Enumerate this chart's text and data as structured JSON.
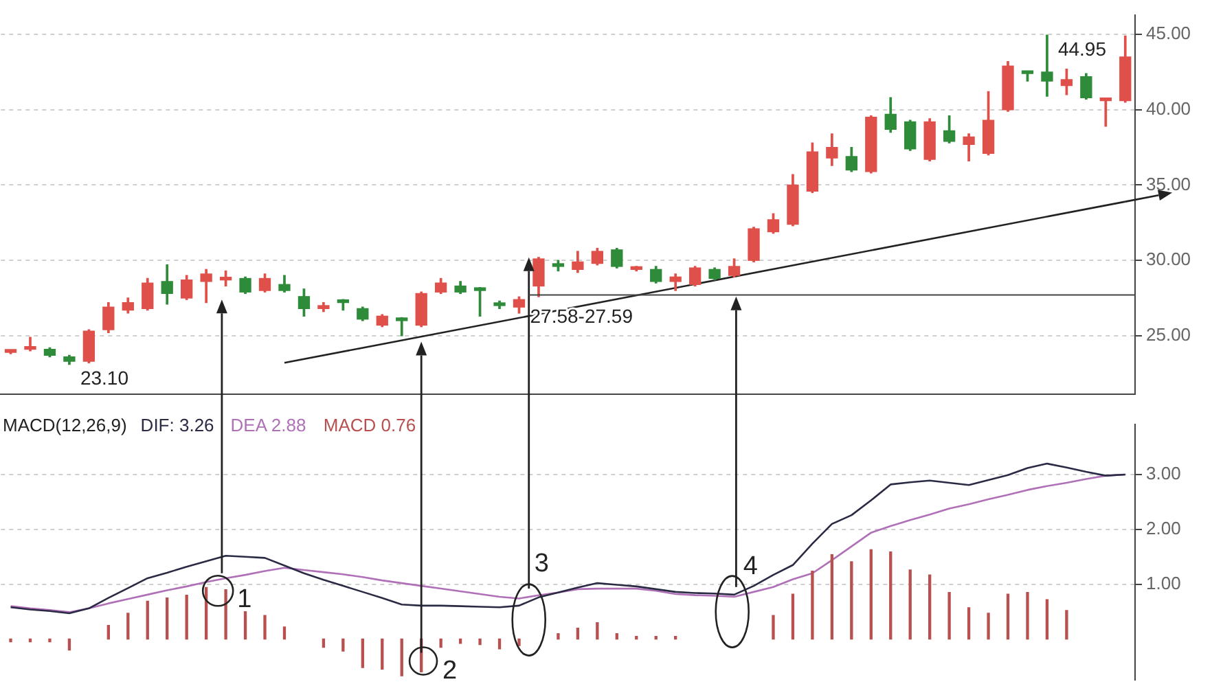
{
  "chart_data": [
    {
      "type": "candlestick",
      "categories": [
        null,
        null,
        null,
        null,
        null,
        null,
        null,
        null,
        null,
        null,
        null,
        null,
        null,
        null,
        null,
        null,
        null,
        null,
        null,
        null,
        null,
        null,
        null,
        null,
        null,
        null,
        null,
        null,
        null,
        null,
        null,
        null,
        null,
        null,
        null,
        null,
        null,
        null,
        null,
        null,
        null,
        null,
        null,
        null,
        null,
        null,
        null,
        null,
        null,
        null,
        null,
        null,
        null,
        null,
        null,
        null,
        null,
        null
      ],
      "ohlc": [
        [
          23.9,
          24.0,
          23.8,
          24.0
        ],
        [
          24.1,
          24.9,
          24.0,
          24.2
        ],
        [
          24.1,
          24.2,
          23.6,
          23.7
        ],
        [
          23.6,
          23.7,
          23.1,
          23.3
        ],
        [
          23.3,
          25.4,
          23.2,
          25.3
        ],
        [
          25.4,
          27.2,
          25.2,
          26.9
        ],
        [
          26.7,
          27.5,
          26.5,
          27.2
        ],
        [
          26.8,
          28.8,
          26.7,
          28.5
        ],
        [
          28.6,
          29.7,
          27.1,
          27.8
        ],
        [
          27.5,
          29.0,
          27.4,
          28.7
        ],
        [
          28.6,
          29.4,
          27.2,
          29.1
        ],
        [
          28.7,
          29.3,
          28.3,
          28.8
        ],
        [
          28.8,
          28.9,
          27.8,
          27.9
        ],
        [
          28.0,
          29.1,
          27.9,
          28.8
        ],
        [
          28.4,
          29.0,
          27.9,
          28.0
        ],
        [
          27.6,
          28.1,
          26.3,
          26.8
        ],
        [
          26.8,
          27.2,
          26.6,
          27.0
        ],
        [
          27.3,
          27.4,
          26.7,
          27.2
        ],
        [
          26.8,
          26.9,
          26.0,
          26.1
        ],
        [
          25.7,
          26.4,
          25.6,
          26.3
        ],
        [
          26.1,
          26.2,
          25.0,
          26.0
        ],
        [
          25.7,
          27.9,
          25.6,
          27.8
        ],
        [
          27.9,
          28.8,
          27.8,
          28.5
        ],
        [
          28.3,
          28.6,
          27.8,
          27.9
        ],
        [
          28.1,
          28.2,
          26.3,
          28.0
        ],
        [
          27.1,
          27.3,
          26.8,
          27.0
        ],
        [
          26.9,
          27.58,
          26.5,
          27.4
        ],
        [
          28.3,
          30.2,
          27.59,
          30.1
        ],
        [
          29.7,
          30.0,
          29.3,
          29.6
        ],
        [
          29.4,
          30.6,
          29.2,
          29.9
        ],
        [
          29.8,
          30.8,
          29.7,
          30.6
        ],
        [
          30.7,
          30.8,
          29.5,
          29.6
        ],
        [
          29.4,
          29.6,
          29.3,
          29.5
        ],
        [
          29.4,
          29.6,
          28.5,
          28.6
        ],
        [
          28.6,
          29.1,
          28.0,
          28.9
        ],
        [
          28.4,
          29.6,
          28.3,
          29.5
        ],
        [
          29.4,
          29.5,
          28.7,
          28.8
        ],
        [
          29.0,
          30.1,
          28.9,
          29.6
        ],
        [
          30.0,
          32.2,
          29.9,
          32.1
        ],
        [
          31.9,
          33.1,
          31.8,
          32.7
        ],
        [
          32.4,
          35.7,
          32.3,
          35.0
        ],
        [
          34.6,
          37.8,
          34.5,
          37.2
        ],
        [
          36.8,
          38.4,
          36.3,
          37.5
        ],
        [
          36.9,
          37.5,
          35.9,
          36.0
        ],
        [
          35.9,
          39.6,
          35.8,
          39.5
        ],
        [
          39.7,
          40.8,
          38.5,
          38.7
        ],
        [
          39.2,
          39.3,
          37.3,
          37.4
        ],
        [
          36.7,
          39.4,
          36.6,
          39.2
        ],
        [
          38.6,
          39.6,
          37.8,
          37.9
        ],
        [
          37.7,
          38.4,
          36.6,
          38.2
        ],
        [
          37.1,
          41.2,
          37.0,
          39.3
        ],
        [
          40.0,
          43.2,
          39.9,
          42.9
        ],
        [
          42.5,
          42.5,
          41.9,
          42.4
        ],
        [
          42.5,
          44.95,
          40.9,
          41.9
        ],
        [
          41.6,
          42.7,
          41.0,
          42.0
        ],
        [
          42.2,
          42.4,
          40.7,
          40.8
        ],
        [
          40.6,
          40.7,
          38.9,
          40.7
        ],
        [
          40.6,
          44.9,
          40.5,
          43.5
        ]
      ],
      "colors": [
        "#e0504a",
        "#e0504a",
        "#2e8b3a",
        "#2e8b3a",
        "#e0504a",
        "#e0504a",
        "#e0504a",
        "#e0504a",
        "#2e8b3a",
        "#e0504a",
        "#e0504a",
        "#e0504a",
        "#2e8b3a",
        "#e0504a",
        "#2e8b3a",
        "#2e8b3a",
        "#e0504a",
        "#2e8b3a",
        "#2e8b3a",
        "#e0504a",
        "#2e8b3a",
        "#e0504a",
        "#e0504a",
        "#2e8b3a",
        "#2e8b3a",
        "#2e8b3a",
        "#e0504a",
        "#e0504a",
        "#2e8b3a",
        "#e0504a",
        "#e0504a",
        "#2e8b3a",
        "#e0504a",
        "#2e8b3a",
        "#e0504a",
        "#e0504a",
        "#2e8b3a",
        "#e0504a",
        "#e0504a",
        "#e0504a",
        "#e0504a",
        "#e0504a",
        "#e0504a",
        "#2e8b3a",
        "#e0504a",
        "#2e8b3a",
        "#2e8b3a",
        "#e0504a",
        "#2e8b3a",
        "#e0504a",
        "#e0504a",
        "#e0504a",
        "#2e8b3a",
        "#2e8b3a",
        "#e0504a",
        "#2e8b3a",
        "#e0504a",
        "#e0504a"
      ],
      "ylim": [
        21.1,
        46.3
      ],
      "yticks": [
        {
          "value": 25,
          "label": "25.00"
        },
        {
          "value": 30,
          "label": "30.00"
        },
        {
          "value": 35,
          "label": "35.00"
        },
        {
          "value": 40,
          "label": "40.00"
        },
        {
          "value": 45,
          "label": "45.00"
        }
      ],
      "tick_labels": "y",
      "grid": "y",
      "series": [
        {
          "type": "line",
          "color": "#222222",
          "values": [
            null,
            null,
            null,
            null,
            null,
            null,
            null,
            null,
            null,
            null,
            null,
            null,
            null,
            null,
            23.2,
            null,
            null,
            null,
            null,
            null,
            null,
            null,
            null,
            null,
            null,
            null,
            null,
            null,
            null,
            null,
            null,
            null,
            null,
            null,
            null,
            null,
            null,
            null,
            null,
            null,
            null,
            null,
            null,
            null,
            null,
            null,
            null,
            null,
            null,
            null,
            null,
            null,
            null,
            null,
            null,
            null,
            null,
            33.9
          ]
        }
      ],
      "annotations": [
        "23.10",
        "27.58-27.59",
        "44.95"
      ]
    },
    {
      "type": "line",
      "title": "MACD(12,26,9)",
      "categories": [
        null,
        null,
        null,
        null,
        null,
        null,
        null,
        null,
        null,
        null,
        null,
        null,
        null,
        null,
        null,
        null,
        null,
        null,
        null,
        null,
        null,
        null,
        null,
        null,
        null,
        null,
        null,
        null,
        null,
        null,
        null,
        null,
        null,
        null,
        null,
        null,
        null,
        null,
        null,
        null,
        null,
        null,
        null,
        null,
        null,
        null,
        null,
        null,
        null,
        null,
        null,
        null,
        null,
        null,
        null,
        null,
        null,
        null
      ],
      "series": [
        {
          "name": "DIF: 3.26",
          "color": "#2a2a44",
          "values": [
            0.58,
            0.54,
            0.51,
            0.47,
            0.56,
            0.75,
            0.93,
            1.11,
            1.21,
            1.32,
            1.42,
            1.52,
            1.5,
            1.48,
            1.34,
            1.2,
            1.08,
            0.97,
            0.86,
            0.75,
            0.63,
            0.61,
            0.61,
            0.6,
            0.59,
            0.58,
            0.61,
            0.76,
            0.85,
            0.94,
            1.02,
            0.99,
            0.96,
            0.91,
            0.86,
            0.84,
            0.83,
            0.81,
            0.97,
            1.17,
            1.35,
            1.74,
            2.1,
            2.26,
            2.53,
            2.82,
            2.86,
            2.89,
            2.85,
            2.81,
            2.9,
            2.99,
            3.12,
            3.2,
            3.13,
            3.05,
            2.98,
            3.0
          ]
        },
        {
          "name": "DEA 2.88",
          "color": "#b070b8",
          "values": [
            0.6,
            0.56,
            0.53,
            0.49,
            0.56,
            0.65,
            0.73,
            0.81,
            0.89,
            0.96,
            1.04,
            1.11,
            1.17,
            1.24,
            1.3,
            1.26,
            1.22,
            1.18,
            1.13,
            1.07,
            1.02,
            0.97,
            0.92,
            0.87,
            0.82,
            0.77,
            0.74,
            0.8,
            0.85,
            0.91,
            0.92,
            0.92,
            0.92,
            0.88,
            0.82,
            0.8,
            0.79,
            0.77,
            0.86,
            0.95,
            1.09,
            1.2,
            1.44,
            1.69,
            1.94,
            2.06,
            2.17,
            2.27,
            2.38,
            2.46,
            2.55,
            2.63,
            2.72,
            2.79,
            2.85,
            2.92,
            2.98,
            3.0
          ]
        },
        {
          "name": "MACD 0.76",
          "type": "bar",
          "color": "#b85050",
          "values": [
            -0.05,
            -0.05,
            -0.05,
            -0.2,
            null,
            0.25,
            0.47,
            0.69,
            0.75,
            0.8,
            0.94,
            0.9,
            0.5,
            0.43,
            0.22,
            null,
            -0.15,
            -0.22,
            -0.52,
            -0.55,
            -0.67,
            -0.6,
            -0.15,
            -0.08,
            -0.1,
            -0.18,
            -0.12,
            null,
            0.1,
            0.2,
            0.3,
            0.1,
            0.05,
            0.05,
            0.05,
            null,
            null,
            null,
            null,
            0.43,
            0.82,
            1.24,
            1.54,
            1.41,
            1.63,
            1.59,
            1.26,
            1.17,
            0.85,
            0.57,
            0.47,
            0.82,
            0.85,
            0.72,
            0.52,
            null,
            null,
            null
          ]
        }
      ],
      "ylim": [
        -0.75,
        3.92
      ],
      "yticks": [
        {
          "value": 1,
          "label": "1.00"
        },
        {
          "value": 2,
          "label": "2.00"
        },
        {
          "value": 3,
          "label": "3.00"
        }
      ],
      "tick_labels": "y",
      "grid": "y",
      "annotations": [
        "1",
        "2",
        "3",
        "4"
      ]
    }
  ]
}
